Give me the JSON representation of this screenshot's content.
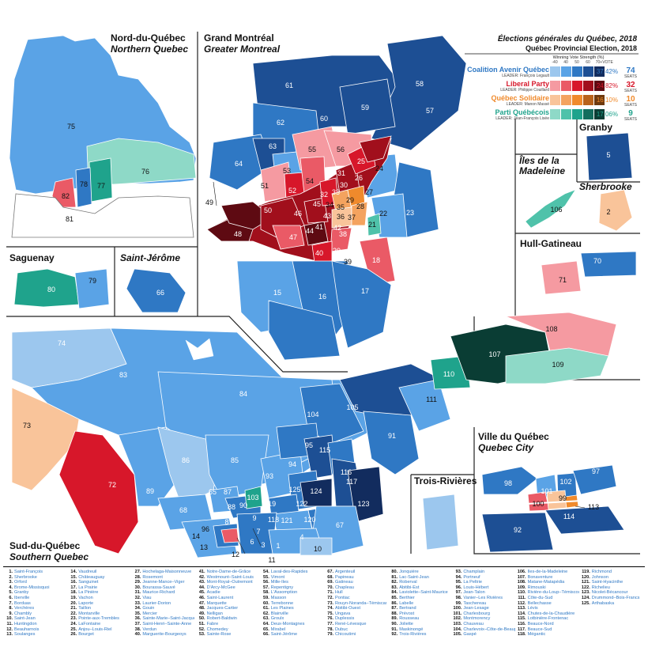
{
  "title": "Élections générales du Québec, 2018",
  "subtitle": "Québec Provincial Election, 2018",
  "strength_header": "Winning Vote Strength (%)",
  "strength_ticks": [
    "-40",
    "40",
    "50",
    "60",
    "70+"
  ],
  "vote_header": "VOTE",
  "parties": [
    {
      "name": "Coalition Avenir Québec",
      "leader": "LEADER: François Legault",
      "vote": "37.42%",
      "seats": "74",
      "seats_label": "SEATS",
      "color": "#2f78c4",
      "shades": [
        "#9cc7ee",
        "#5aa3e6",
        "#2f78c4",
        "#1d4f94",
        "#122c5e"
      ]
    },
    {
      "name": "Liberal Party",
      "leader": "LEADER: Philippe Couillard",
      "vote": "24.82%",
      "seats": "32",
      "seats_label": "SEATS",
      "color": "#d7172a",
      "shades": [
        "#f59aa1",
        "#ea5a66",
        "#d7172a",
        "#a10f1c",
        "#5e0a12"
      ]
    },
    {
      "name": "Québec Solidaire",
      "leader": "LEADER: Manon Massé",
      "vote": "16.10%",
      "seats": "10",
      "seats_label": "SEATS",
      "color": "#f08a2c",
      "shades": [
        "#f9c49a",
        "#f4a35f",
        "#f08a2c",
        "#b9621b",
        "#6f3a0f"
      ]
    },
    {
      "name": "Parti Québécois",
      "leader": "LEADER: Jean-François Lisée",
      "vote": "17.06%",
      "seats": "9",
      "seats_label": "SEATS",
      "color": "#1fa38c",
      "shades": [
        "#8ed9c7",
        "#4fc2aa",
        "#1fa38c",
        "#136e5e",
        "#0a3d34"
      ]
    }
  ],
  "regions": {
    "nord": [
      "Nord-du-Québec",
      "Northern Quebec"
    ],
    "montreal": [
      "Grand Montréal",
      "Greater Montreal"
    ],
    "saguenay": "Saguenay",
    "stjerome": "Saint-Jérôme",
    "granby": "Granby",
    "iles": [
      "Îles de la",
      "Madeleine"
    ],
    "sherbrooke": "Sherbrooke",
    "hull": "Hull-Gatineau",
    "trois": "Trois-Rivières",
    "quebec": [
      "Ville du Québec",
      "Quebec City"
    ],
    "sud": [
      "Sud-du-Québec",
      "Southern Quebec"
    ]
  },
  "map_numbers": [
    "75",
    "76",
    "77",
    "78",
    "81",
    "82",
    "61",
    "58",
    "59",
    "57",
    "60",
    "62",
    "63",
    "64",
    "55",
    "56",
    "53",
    "51",
    "54",
    "52",
    "25",
    "24",
    "31",
    "26",
    "30",
    "33",
    "32",
    "27",
    "49",
    "50",
    "48",
    "46",
    "45",
    "29",
    "34",
    "35",
    "28",
    "21",
    "22",
    "23",
    "47",
    "44",
    "41",
    "42",
    "43",
    "36",
    "37",
    "38",
    "40",
    "39",
    "20",
    "18",
    "19",
    "15",
    "16",
    "17",
    "80",
    "79",
    "66",
    "5",
    "106",
    "2",
    "70",
    "71",
    "74",
    "83",
    "84",
    "73",
    "72",
    "86",
    "85",
    "89",
    "68",
    "87",
    "88",
    "90",
    "103",
    "104",
    "105",
    "108",
    "107",
    "109",
    "110",
    "111",
    "91",
    "93",
    "94",
    "95",
    "115",
    "116",
    "117",
    "123",
    "125",
    "124",
    "122",
    "119",
    "120",
    "121",
    "118",
    "67",
    "65",
    "8",
    "9",
    "7",
    "6",
    "3",
    "4",
    "1",
    "10",
    "11",
    "12",
    "13",
    "14",
    "96",
    "98",
    "101",
    "102",
    "97",
    "100",
    "99",
    "113",
    "114",
    "92"
  ],
  "ridings": [
    [
      "1",
      "Saint-François"
    ],
    [
      "2",
      "Sherbrooke"
    ],
    [
      "3",
      "Orford"
    ],
    [
      "4",
      "Brome-Missisquoi"
    ],
    [
      "5",
      "Granby"
    ],
    [
      "6",
      "Iberville"
    ],
    [
      "7",
      "Borduas"
    ],
    [
      "8",
      "Verchères"
    ],
    [
      "9",
      "Chambly"
    ],
    [
      "10",
      "Saint-Jean"
    ],
    [
      "11",
      "Huntingdon"
    ],
    [
      "12",
      "Beauharnois"
    ],
    [
      "13",
      "Soulanges"
    ],
    [
      "14",
      "Vaudreuil"
    ],
    [
      "15",
      "Châteauguay"
    ],
    [
      "16",
      "Sanguinet"
    ],
    [
      "17",
      "La Prairie"
    ],
    [
      "18",
      "La Pinière"
    ],
    [
      "19",
      "Vachon"
    ],
    [
      "20",
      "Laporte"
    ],
    [
      "21",
      "Taillon"
    ],
    [
      "22",
      "Montarville"
    ],
    [
      "23",
      "Pointe-aux-Trembles"
    ],
    [
      "24",
      "LaFontaine"
    ],
    [
      "25",
      "Anjou–Louis-Riel"
    ],
    [
      "26",
      "Bourget"
    ],
    [
      "27",
      "Hochelaga-Maisonneuve"
    ],
    [
      "28",
      "Rosemont"
    ],
    [
      "29",
      "Jeanne-Mance–Viger"
    ],
    [
      "30",
      "Bourassa-Sauvé"
    ],
    [
      "31",
      "Maurice-Richard"
    ],
    [
      "32",
      "Viau"
    ],
    [
      "33",
      "Laurier-Dorion"
    ],
    [
      "34",
      "Gouin"
    ],
    [
      "35",
      "Mercier"
    ],
    [
      "36",
      "Sainte-Marie–Saint-Jacques"
    ],
    [
      "37",
      "Saint-Henri–Sainte-Anne"
    ],
    [
      "38",
      "Verdun"
    ],
    [
      "40",
      "Marguerite-Bourgeoys"
    ],
    [
      "41",
      "Notre-Dame-de-Grâce"
    ],
    [
      "42",
      "Westmount–Saint-Louis"
    ],
    [
      "43",
      "Mont-Royal–Outremont"
    ],
    [
      "44",
      "D'Arcy-McGee"
    ],
    [
      "45",
      "Acadie"
    ],
    [
      "46",
      "Saint-Laurent"
    ],
    [
      "47",
      "Marquette"
    ],
    [
      "48",
      "Jacques-Cartier"
    ],
    [
      "49",
      "Nelligan"
    ],
    [
      "50",
      "Robert-Baldwin"
    ],
    [
      "51",
      "Fabre"
    ],
    [
      "52",
      "Chomedey"
    ],
    [
      "53",
      "Sainte-Rose"
    ],
    [
      "54",
      "Laval-des-Rapides"
    ],
    [
      "55",
      "Vimont"
    ],
    [
      "56",
      "Mille-Îles"
    ],
    [
      "57",
      "Repentigny"
    ],
    [
      "58",
      "L'Assomption"
    ],
    [
      "59",
      "Masson"
    ],
    [
      "60",
      "Terrebonne"
    ],
    [
      "61",
      "Les Plaines"
    ],
    [
      "62",
      "Blainville"
    ],
    [
      "63",
      "Groulx"
    ],
    [
      "64",
      "Deux-Montagnes"
    ],
    [
      "65",
      "Mirabel"
    ],
    [
      "66",
      "Saint-Jérôme"
    ],
    [
      "67",
      "Argenteuil"
    ],
    [
      "68",
      "Papineau"
    ],
    [
      "69",
      "Gatineau"
    ],
    [
      "70",
      "Chapleau"
    ],
    [
      "71",
      "Hull"
    ],
    [
      "72",
      "Pontiac"
    ],
    [
      "73",
      "Rouyn-Noranda–Témiscamingue"
    ],
    [
      "74",
      "Abitibi-Ouest"
    ],
    [
      "75",
      "Ungava"
    ],
    [
      "76",
      "Duplessis"
    ],
    [
      "77",
      "René-Lévesque"
    ],
    [
      "78",
      "Dubuc"
    ],
    [
      "79",
      "Chicoutimi"
    ],
    [
      "80",
      "Jonquière"
    ],
    [
      "81",
      "Lac-Saint-Jean"
    ],
    [
      "82",
      "Roberval"
    ],
    [
      "83",
      "Abitibi-Est"
    ],
    [
      "84",
      "Laviolette–Saint-Maurice"
    ],
    [
      "85",
      "Berthier"
    ],
    [
      "86",
      "Labelle"
    ],
    [
      "87",
      "Bertrand"
    ],
    [
      "88",
      "Prévost"
    ],
    [
      "89",
      "Rousseau"
    ],
    [
      "90",
      "Joliette"
    ],
    [
      "91",
      "Maskinongé"
    ],
    [
      "92",
      "Trois-Rivières"
    ],
    [
      "93",
      "Champlain"
    ],
    [
      "94",
      "Portneuf"
    ],
    [
      "95",
      "La Peltrie"
    ],
    [
      "96",
      "Louis-Hébert"
    ],
    [
      "97",
      "Jean-Talon"
    ],
    [
      "98",
      "Vanier–Les Rivières"
    ],
    [
      "99",
      "Taschereau"
    ],
    [
      "100",
      "Jean-Lesage"
    ],
    [
      "101",
      "Charlesbourg"
    ],
    [
      "102",
      "Montmorency"
    ],
    [
      "103",
      "Chauveau"
    ],
    [
      "104",
      "Charlevoix–Côte-de-Beaupré"
    ],
    [
      "105",
      "Gaspé"
    ],
    [
      "106",
      "Îles-de-la-Madeleine"
    ],
    [
      "107",
      "Bonaventure"
    ],
    [
      "108",
      "Matane-Matapédia"
    ],
    [
      "109",
      "Rimouski"
    ],
    [
      "110",
      "Rivière-du-Loup–Témiscouata"
    ],
    [
      "111",
      "Côte-du-Sud"
    ],
    [
      "112",
      "Bellechasse"
    ],
    [
      "113",
      "Lévis"
    ],
    [
      "114",
      "Chutes-de-la-Chaudière"
    ],
    [
      "115",
      "Lotbinière-Frontenac"
    ],
    [
      "116",
      "Beauce-Nord"
    ],
    [
      "117",
      "Beauce-Sud"
    ],
    [
      "118",
      "Mégantic"
    ],
    [
      "119",
      "Richmond"
    ],
    [
      "120",
      "Johnson"
    ],
    [
      "121",
      "Saint-Hyacinthe"
    ],
    [
      "122",
      "Richelieu"
    ],
    [
      "123",
      "Nicolet-Bécancour"
    ],
    [
      "124",
      "Drummond–Bois-Francs"
    ],
    [
      "125",
      "Arthabaska"
    ]
  ]
}
